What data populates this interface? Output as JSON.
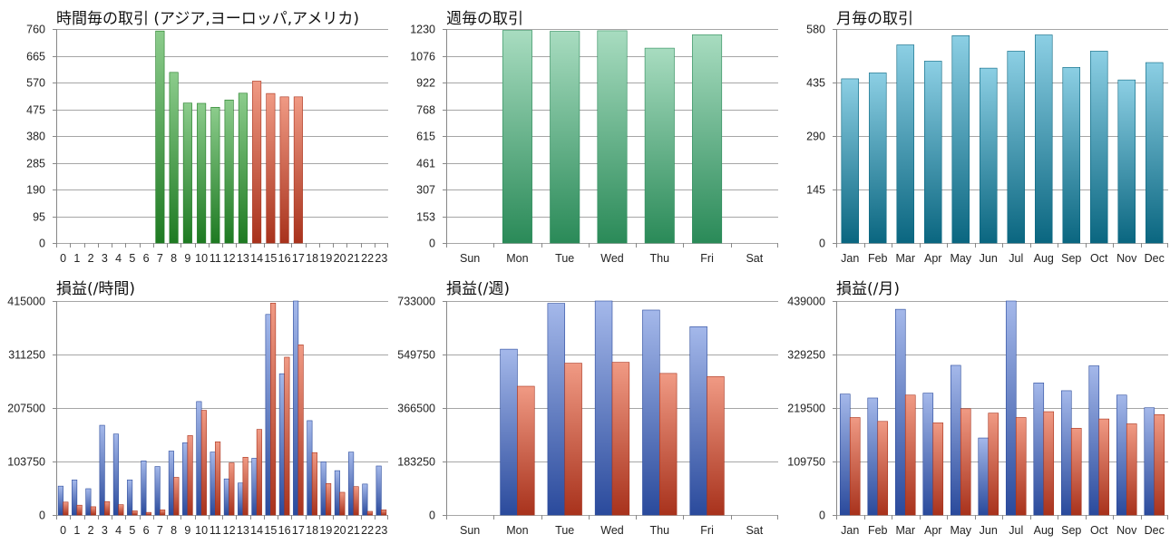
{
  "colors": {
    "green_top": "#8ccc8c",
    "green_bottom": "#1e7a22",
    "red_top": "#f09a84",
    "red_bottom": "#a8321c",
    "mint_top": "#a8dcc0",
    "mint_bottom": "#2a8a58",
    "teal_top": "#8ccfe4",
    "teal_bottom": "#0a6680",
    "blue_top": "#a4b8ea",
    "blue_bottom": "#2a4a9c",
    "grid": "#a6a6a6"
  },
  "chart_data": [
    {
      "id": "hourly-trades",
      "type": "bar",
      "title": "時間毎の取引 (アジア,ヨーロッパ,アメリカ)",
      "categories": [
        "0",
        "1",
        "2",
        "3",
        "4",
        "5",
        "6",
        "7",
        "8",
        "9",
        "10",
        "11",
        "12",
        "13",
        "14",
        "15",
        "16",
        "17",
        "18",
        "19",
        "20",
        "21",
        "22",
        "23"
      ],
      "values": [
        0,
        0,
        0,
        0,
        0,
        0,
        0,
        753,
        606,
        497,
        496,
        482,
        508,
        532,
        575,
        531,
        519,
        519,
        0,
        0,
        0,
        0,
        0,
        0
      ],
      "bar_colors": [
        "green",
        "green",
        "green",
        "green",
        "green",
        "green",
        "green",
        "green",
        "green",
        "green",
        "green",
        "green",
        "green",
        "green",
        "red",
        "red",
        "red",
        "red",
        "green",
        "green",
        "green",
        "green",
        "green",
        "green"
      ],
      "y_ticks": [
        "0",
        "95",
        "190",
        "285",
        "380",
        "475",
        "570",
        "665",
        "760"
      ],
      "ylim": [
        0,
        760
      ],
      "grid": true
    },
    {
      "id": "weekly-trades",
      "type": "bar",
      "title": "週毎の取引",
      "categories": [
        "Sun",
        "Mon",
        "Tue",
        "Wed",
        "Thu",
        "Fri",
        "Sat"
      ],
      "values": [
        0,
        1222,
        1217,
        1220,
        1120,
        1197,
        0
      ],
      "bar_color": "mint",
      "y_ticks": [
        "0",
        "153",
        "307",
        "461",
        "615",
        "768",
        "922",
        "1076",
        "1230"
      ],
      "ylim": [
        0,
        1230
      ],
      "grid": true
    },
    {
      "id": "monthly-trades",
      "type": "bar",
      "title": "月毎の取引",
      "categories": [
        "Jan",
        "Feb",
        "Mar",
        "Apr",
        "May",
        "Jun",
        "Jul",
        "Aug",
        "Sep",
        "Oct",
        "Nov",
        "Dec"
      ],
      "values": [
        445,
        461,
        537,
        493,
        562,
        474,
        520,
        564,
        476,
        520,
        442,
        489
      ],
      "bar_color": "teal",
      "y_ticks": [
        "0",
        "145",
        "290",
        "435",
        "580"
      ],
      "ylim": [
        0,
        580
      ],
      "grid": true
    },
    {
      "id": "hourly-pnl",
      "type": "bar",
      "title": "損益(/時間)",
      "categories": [
        "0",
        "1",
        "2",
        "3",
        "4",
        "5",
        "6",
        "7",
        "8",
        "9",
        "10",
        "11",
        "12",
        "13",
        "14",
        "15",
        "16",
        "17",
        "18",
        "19",
        "20",
        "21",
        "22",
        "23"
      ],
      "series": [
        {
          "color": "blue",
          "values": [
            56000,
            68000,
            51000,
            174000,
            157000,
            68000,
            105000,
            94000,
            124000,
            140000,
            220000,
            122000,
            70000,
            62000,
            110000,
            389000,
            274000,
            415000,
            183000,
            103000,
            86000,
            122000,
            60000,
            95000
          ]
        },
        {
          "color": "red",
          "values": [
            25000,
            19000,
            16000,
            26000,
            20000,
            8000,
            5000,
            10000,
            73000,
            154000,
            203000,
            142000,
            101000,
            112000,
            166000,
            411000,
            306000,
            330000,
            121000,
            61000,
            44000,
            55000,
            7000,
            10000
          ]
        }
      ],
      "y_ticks": [
        "0",
        "103750",
        "207500",
        "311250",
        "415000"
      ],
      "ylim": [
        0,
        415000
      ],
      "grid": true
    },
    {
      "id": "weekly-pnl",
      "type": "bar",
      "title": "損益(/週)",
      "categories": [
        "Sun",
        "Mon",
        "Tue",
        "Wed",
        "Thu",
        "Fri",
        "Sat"
      ],
      "series": [
        {
          "color": "blue",
          "values": [
            0,
            568000,
            725000,
            733000,
            702000,
            645000,
            0
          ]
        },
        {
          "color": "red",
          "values": [
            0,
            441000,
            520000,
            523000,
            485000,
            474000,
            0
          ]
        }
      ],
      "y_ticks": [
        "0",
        "183250",
        "366500",
        "549750",
        "733000"
      ],
      "ylim": [
        0,
        733000
      ],
      "grid": true
    },
    {
      "id": "monthly-pnl",
      "type": "bar",
      "title": "損益(/月)",
      "categories": [
        "Jan",
        "Feb",
        "Mar",
        "Apr",
        "May",
        "Jun",
        "Jul",
        "Aug",
        "Sep",
        "Oct",
        "Nov",
        "Dec"
      ],
      "series": [
        {
          "color": "blue",
          "values": [
            248000,
            240000,
            422000,
            250000,
            307000,
            158000,
            439000,
            271000,
            255000,
            306000,
            246000,
            220000
          ]
        },
        {
          "color": "red",
          "values": [
            200000,
            192000,
            246000,
            189000,
            218000,
            209000,
            200000,
            212000,
            178000,
            197000,
            187000,
            206000
          ]
        }
      ],
      "y_ticks": [
        "0",
        "109750",
        "219500",
        "329250",
        "439000"
      ],
      "ylim": [
        0,
        439000
      ],
      "grid": true
    }
  ]
}
